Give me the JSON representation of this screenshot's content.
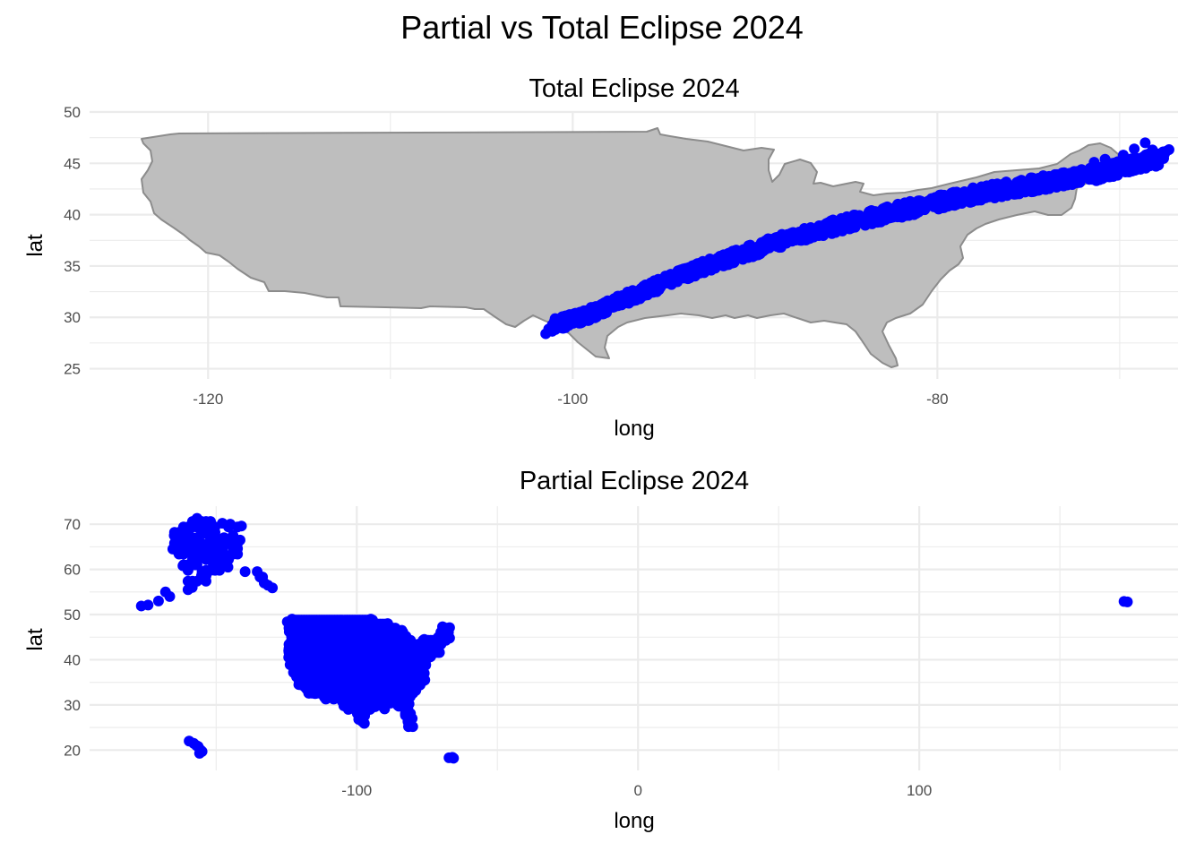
{
  "title": "Partial vs Total Eclipse 2024",
  "colors": {
    "points": "#0000ff",
    "land_fill": "#bebebe",
    "land_stroke": "#8c8c8c",
    "grid": "#ebebeb"
  },
  "chart_data": [
    {
      "type": "scatter",
      "title": "Total Eclipse 2024",
      "xlabel": "long",
      "ylabel": "lat",
      "xlim": [
        -126.5,
        -66.8
      ],
      "ylim": [
        24.0,
        50.0
      ],
      "xticks": [
        -120,
        -100,
        -80
      ],
      "yticks": [
        25,
        30,
        35,
        40,
        45,
        50
      ],
      "grid": true,
      "background_layer": "contiguous US outline",
      "series": [
        {
          "band": [
            [
              -101.2,
              29.2
            ],
            [
              -99.5,
              30.0
            ],
            [
              -97.5,
              31.5
            ],
            [
              -95.5,
              33.0
            ],
            [
              -93.5,
              34.5
            ],
            [
              -91.0,
              36.0
            ],
            [
              -88.5,
              37.5
            ],
            [
              -86.0,
              38.7
            ],
            [
              -83.5,
              39.8
            ],
            [
              -81.0,
              40.8
            ],
            [
              -78.5,
              41.8
            ],
            [
              -76.0,
              42.6
            ],
            [
              -73.5,
              43.3
            ],
            [
              -71.0,
              44.1
            ],
            [
              -69.0,
              45.0
            ],
            [
              -67.5,
              45.6
            ]
          ],
          "band_width_deg": 1.6,
          "extra_points": [
            [
              -69.8,
              45.8
            ],
            [
              -69.2,
              46.4
            ],
            [
              -68.6,
              47.0
            ],
            [
              -68.2,
              46.3
            ],
            [
              -67.8,
              45.5
            ],
            [
              -70.8,
              45.4
            ],
            [
              -71.4,
              45.1
            ]
          ]
        }
      ]
    },
    {
      "type": "scatter",
      "title": "Partial Eclipse 2024",
      "xlabel": "long",
      "ylabel": "lat",
      "xlim": [
        -195,
        192
      ],
      "ylim": [
        15.5,
        74
      ],
      "xticks": [
        -100,
        0,
        100
      ],
      "yticks": [
        20,
        30,
        40,
        50,
        60,
        70
      ],
      "grid": true,
      "series": [
        {
          "regions": [
            "Alaska",
            "Contiguous US",
            "Hawaii",
            "Puerto Rico",
            "Aleutians (east of 180)"
          ],
          "isolated_points": [
            [
              -176.6,
              51.9
            ],
            [
              -174.2,
              52.1
            ],
            [
              -170.5,
              53.0
            ],
            [
              -168.0,
              55.0
            ],
            [
              -165.4,
              64.5
            ],
            [
              -162.0,
              66.9
            ],
            [
              -156.8,
              71.3
            ],
            [
              -152.0,
              70.2
            ],
            [
              -147.8,
              70.2
            ],
            [
              -145.0,
              70.0
            ],
            [
              -141.0,
              69.6
            ],
            [
              -135.4,
              59.5
            ],
            [
              -132.9,
              57.0
            ],
            [
              -130.0,
              55.9
            ],
            [
              -131.6,
              56.5
            ],
            [
              -133.5,
              58.3
            ],
            [
              -160.6,
              68.3
            ],
            [
              -163.5,
              63.8
            ],
            [
              -164.9,
              67.5
            ],
            [
              -161.8,
              60.8
            ],
            [
              -158.5,
              56.0
            ],
            [
              -154.4,
              57.8
            ],
            [
              -166.5,
              54.0
            ],
            [
              -160.0,
              55.5
            ],
            [
              -149.9,
              61.2
            ],
            [
              -147.7,
              64.8
            ],
            [
              -151.2,
              60.5
            ],
            [
              -145.8,
              60.5
            ],
            [
              -139.7,
              59.5
            ],
            [
              -134.4,
              58.3
            ],
            [
              -156.0,
              65.0
            ],
            [
              -153.0,
              63.0
            ],
            [
              -143.0,
              63.5
            ],
            [
              -146.0,
              66.0
            ],
            [
              -150.0,
              67.0
            ],
            [
              -155.0,
              59.5
            ],
            [
              -157.5,
              61.0
            ],
            [
              -148.0,
              62.0
            ],
            [
              -152.0,
              66.5
            ],
            [
              -158.0,
              64.5
            ],
            [
              -154.0,
              68.0
            ],
            [
              -144.0,
              67.5
            ],
            [
              -141.5,
              66.5
            ],
            [
              -149.5,
              64.0
            ],
            [
              -161.5,
              64.3
            ],
            [
              -159.6,
              22.0
            ],
            [
              -158.0,
              21.5
            ],
            [
              -157.0,
              21.0
            ],
            [
              -156.4,
              20.8
            ],
            [
              -155.5,
              20.0
            ],
            [
              -155.0,
              19.7
            ],
            [
              -155.9,
              19.3
            ],
            [
              -66.0,
              18.4
            ],
            [
              -67.2,
              18.3
            ],
            [
              -65.6,
              18.2
            ],
            [
              172.8,
              52.9
            ],
            [
              174.0,
              52.8
            ]
          ]
        }
      ]
    }
  ]
}
